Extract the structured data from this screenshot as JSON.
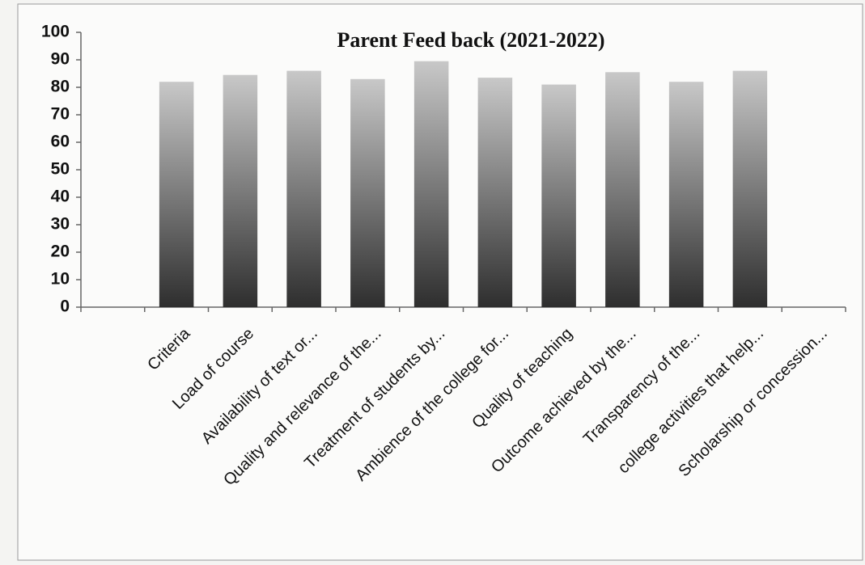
{
  "chart_data": {
    "type": "bar",
    "title": "Parent Feed back (2021-2022)",
    "categories": [
      null,
      "Criteria",
      "Load of course",
      "Availability of text or...",
      "Quality and relevance of the...",
      "Treatment of students by...",
      "Ambience of the college for...",
      "Quality of teaching",
      "Outcome achieved by the...",
      "Transparency of the...",
      "college activities that help...",
      "Scholarship or concession..."
    ],
    "values": [
      null,
      82,
      84.5,
      86,
      83,
      89.5,
      83.5,
      81,
      85.5,
      82,
      86,
      null
    ],
    "color": "#2e2e2e",
    "ylim": [
      0,
      100
    ],
    "yticks": [
      0,
      10,
      20,
      30,
      40,
      50,
      60,
      70,
      80,
      90,
      100
    ],
    "grid": false
  }
}
